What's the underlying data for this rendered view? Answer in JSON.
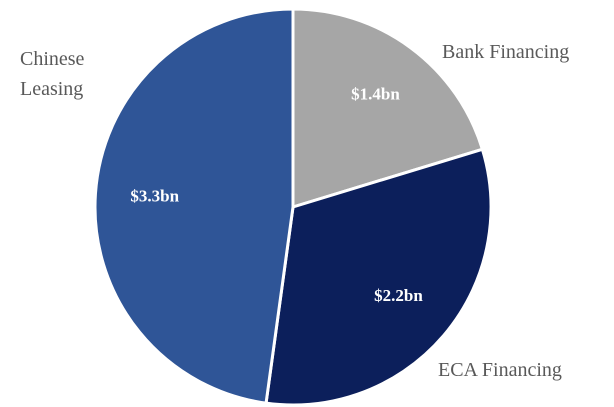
{
  "chart_data": {
    "type": "pie",
    "categories": [
      "Bank Financing",
      "ECA Financing",
      "Chinese Leasing"
    ],
    "values": [
      1.4,
      2.2,
      3.3
    ],
    "value_labels": [
      "$1.4bn",
      "$2.2bn",
      "$3.3bn"
    ],
    "colors": [
      "#a6a6a6",
      "#0c1f5b",
      "#2f5597"
    ]
  }
}
